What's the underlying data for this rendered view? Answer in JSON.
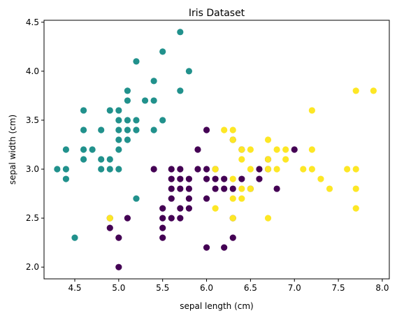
{
  "chart_data": {
    "type": "scatter",
    "title": "Iris Dataset",
    "xlabel": "sepal length (cm)",
    "ylabel": "sepal width (cm)",
    "xlim": [
      4.15,
      8.08
    ],
    "ylim": [
      1.88,
      4.52
    ],
    "xticks": [
      4.5,
      5.0,
      5.5,
      6.0,
      6.5,
      7.0,
      7.5,
      8.0
    ],
    "xtick_labels": [
      "4.5",
      "5.0",
      "5.5",
      "6.0",
      "6.5",
      "7.0",
      "7.5",
      "8.0"
    ],
    "yticks": [
      2.0,
      2.5,
      3.0,
      3.5,
      4.0,
      4.5
    ],
    "ytick_labels": [
      "2.0",
      "2.5",
      "3.0",
      "3.5",
      "4.0",
      "4.5"
    ],
    "grid": false,
    "legend": "none",
    "series": [
      {
        "color": "#21918c",
        "points": [
          [
            4.3,
            3.0
          ],
          [
            4.4,
            3.0
          ],
          [
            4.4,
            3.2
          ],
          [
            4.4,
            2.9
          ],
          [
            4.5,
            2.3
          ],
          [
            4.6,
            3.1
          ],
          [
            4.6,
            3.2
          ],
          [
            4.6,
            3.4
          ],
          [
            4.6,
            3.6
          ],
          [
            4.7,
            3.2
          ],
          [
            4.8,
            3.0
          ],
          [
            4.8,
            3.1
          ],
          [
            4.8,
            3.4
          ],
          [
            4.9,
            3.0
          ],
          [
            4.9,
            3.1
          ],
          [
            4.9,
            3.6
          ],
          [
            5.0,
            3.0
          ],
          [
            5.0,
            3.2
          ],
          [
            5.0,
            3.3
          ],
          [
            5.0,
            3.4
          ],
          [
            5.0,
            3.5
          ],
          [
            5.0,
            3.6
          ],
          [
            5.1,
            3.3
          ],
          [
            5.1,
            3.4
          ],
          [
            5.1,
            3.5
          ],
          [
            5.1,
            3.7
          ],
          [
            5.1,
            3.8
          ],
          [
            5.2,
            3.4
          ],
          [
            5.2,
            3.5
          ],
          [
            5.2,
            4.1
          ],
          [
            5.3,
            3.7
          ],
          [
            5.4,
            3.4
          ],
          [
            5.4,
            3.7
          ],
          [
            5.4,
            3.9
          ],
          [
            5.5,
            3.5
          ],
          [
            5.5,
            4.2
          ],
          [
            5.7,
            3.8
          ],
          [
            5.7,
            4.4
          ],
          [
            5.8,
            4.0
          ],
          [
            5.2,
            2.7
          ]
        ]
      },
      {
        "color": "#440154",
        "points": [
          [
            4.9,
            2.4
          ],
          [
            4.9,
            2.5
          ],
          [
            5.0,
            2.0
          ],
          [
            5.0,
            2.3
          ],
          [
            5.1,
            2.5
          ],
          [
            5.4,
            3.0
          ],
          [
            5.5,
            2.3
          ],
          [
            5.5,
            2.4
          ],
          [
            5.5,
            2.5
          ],
          [
            5.5,
            2.6
          ],
          [
            5.6,
            2.5
          ],
          [
            5.6,
            2.7
          ],
          [
            5.6,
            2.8
          ],
          [
            5.6,
            2.9
          ],
          [
            5.6,
            3.0
          ],
          [
            5.7,
            2.5
          ],
          [
            5.7,
            2.6
          ],
          [
            5.7,
            2.8
          ],
          [
            5.7,
            2.9
          ],
          [
            5.7,
            3.0
          ],
          [
            5.8,
            2.6
          ],
          [
            5.8,
            2.7
          ],
          [
            5.8,
            2.8
          ],
          [
            5.8,
            2.9
          ],
          [
            5.9,
            3.0
          ],
          [
            5.9,
            3.2
          ],
          [
            6.0,
            2.2
          ],
          [
            6.0,
            2.7
          ],
          [
            6.0,
            2.9
          ],
          [
            6.0,
            3.0
          ],
          [
            6.0,
            3.4
          ],
          [
            6.1,
            2.8
          ],
          [
            6.1,
            2.9
          ],
          [
            6.1,
            3.0
          ],
          [
            6.2,
            2.2
          ],
          [
            6.2,
            2.8
          ],
          [
            6.2,
            2.9
          ],
          [
            6.3,
            2.3
          ],
          [
            6.3,
            2.5
          ],
          [
            6.3,
            2.8
          ],
          [
            6.3,
            3.3
          ],
          [
            6.4,
            2.9
          ],
          [
            6.4,
            3.2
          ],
          [
            6.5,
            2.8
          ],
          [
            6.6,
            2.9
          ],
          [
            6.6,
            3.0
          ],
          [
            6.7,
            3.0
          ],
          [
            6.7,
            3.1
          ],
          [
            6.8,
            2.8
          ],
          [
            7.0,
            3.2
          ]
        ]
      },
      {
        "color": "#fde725",
        "points": [
          [
            4.9,
            2.5
          ],
          [
            6.1,
            2.6
          ],
          [
            6.1,
            3.0
          ],
          [
            6.2,
            3.4
          ],
          [
            6.3,
            2.5
          ],
          [
            6.3,
            2.7
          ],
          [
            6.3,
            2.9
          ],
          [
            6.3,
            3.3
          ],
          [
            6.3,
            3.4
          ],
          [
            6.4,
            2.7
          ],
          [
            6.4,
            2.8
          ],
          [
            6.4,
            3.1
          ],
          [
            6.4,
            3.2
          ],
          [
            6.5,
            3.0
          ],
          [
            6.5,
            3.2
          ],
          [
            6.5,
            2.8
          ],
          [
            6.7,
            2.5
          ],
          [
            6.7,
            3.0
          ],
          [
            6.7,
            3.1
          ],
          [
            6.7,
            3.3
          ],
          [
            6.8,
            3.0
          ],
          [
            6.8,
            3.2
          ],
          [
            6.9,
            3.1
          ],
          [
            6.9,
            3.2
          ],
          [
            7.1,
            3.0
          ],
          [
            7.2,
            3.0
          ],
          [
            7.2,
            3.2
          ],
          [
            7.2,
            3.6
          ],
          [
            7.3,
            2.9
          ],
          [
            7.4,
            2.8
          ],
          [
            7.6,
            3.0
          ],
          [
            7.7,
            2.6
          ],
          [
            7.7,
            2.8
          ],
          [
            7.7,
            3.0
          ],
          [
            7.7,
            3.8
          ],
          [
            7.9,
            3.8
          ]
        ]
      }
    ]
  }
}
